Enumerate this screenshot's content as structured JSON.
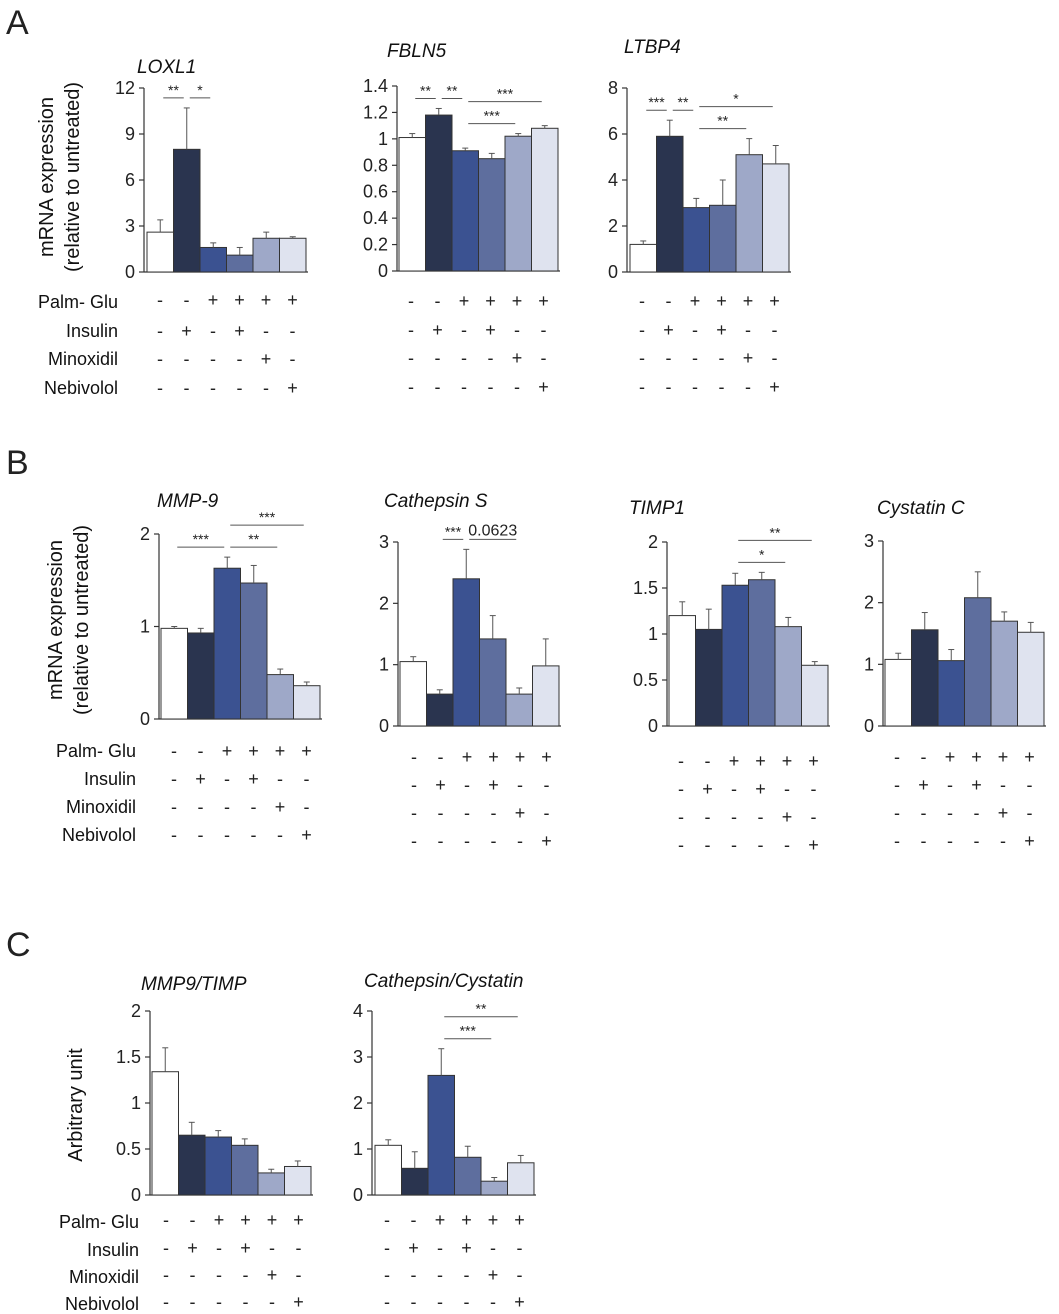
{
  "panel_labels": [
    "A",
    "B",
    "C"
  ],
  "bar_colors": [
    "#ffffff",
    "#2a344f",
    "#3b5291",
    "#5e6e9e",
    "#9ea8c8",
    "#dfe3ef"
  ],
  "conditions": {
    "labels": [
      "Palm- Glu",
      "Insulin",
      "Minoxidil",
      "Nebivolol"
    ],
    "rows": [
      [
        "-",
        "-",
        "+",
        "+",
        "+",
        "+"
      ],
      [
        "-",
        "+",
        "-",
        "+",
        "-",
        "-"
      ],
      [
        "-",
        "-",
        "-",
        "-",
        "+",
        "-"
      ],
      [
        "-",
        "-",
        "-",
        "-",
        "-",
        "+"
      ]
    ]
  },
  "y_labels": {
    "A": [
      "mRNA expression",
      "(relative to untreated)"
    ],
    "B": [
      "mRNA expression",
      "(relative  to untreated)"
    ],
    "C": [
      "Arbitrary unit"
    ]
  },
  "chart_data": [
    {
      "panel": "A",
      "type": "bar",
      "title": "LOXL1",
      "ylim": [
        0,
        12
      ],
      "yticks": [
        "0",
        "3",
        "6",
        "9",
        "12"
      ],
      "tick_values": [
        0,
        3,
        6,
        9,
        12
      ],
      "values": [
        2.6,
        8.0,
        1.6,
        1.1,
        2.2,
        2.2
      ],
      "errors": [
        0.8,
        2.7,
        0.3,
        0.5,
        0.4,
        0.1
      ],
      "significance": [
        {
          "from": 0,
          "to": 1,
          "label": "**"
        },
        {
          "from": 1,
          "to": 2,
          "label": "*"
        }
      ]
    },
    {
      "panel": "A",
      "type": "bar",
      "title": "FBLN5",
      "ylim": [
        0,
        1.4
      ],
      "yticks": [
        "0",
        "0.2",
        "0.4",
        "0.6",
        "0.8",
        "1",
        "1.2",
        "1.4"
      ],
      "tick_values": [
        0,
        0.2,
        0.4,
        0.6,
        0.8,
        1,
        1.2,
        1.4
      ],
      "values": [
        1.01,
        1.18,
        0.91,
        0.85,
        1.02,
        1.08
      ],
      "errors": [
        0.03,
        0.05,
        0.02,
        0.04,
        0.02,
        0.02
      ],
      "significance": [
        {
          "from": 0,
          "to": 1,
          "label": "**"
        },
        {
          "from": 1,
          "to": 2,
          "label": "**"
        },
        {
          "from": 2,
          "to": 5,
          "label": "***"
        },
        {
          "from": 2,
          "to": 4,
          "label": "***"
        }
      ]
    },
    {
      "panel": "A",
      "type": "bar",
      "title": "LTBP4",
      "ylim": [
        0,
        8
      ],
      "yticks": [
        "0",
        "2",
        "4",
        "6",
        "8"
      ],
      "tick_values": [
        0,
        2,
        4,
        6,
        8
      ],
      "values": [
        1.2,
        5.9,
        2.8,
        2.9,
        5.1,
        4.7
      ],
      "errors": [
        0.15,
        0.7,
        0.4,
        1.1,
        0.7,
        0.8
      ],
      "significance": [
        {
          "from": 0,
          "to": 1,
          "label": "***"
        },
        {
          "from": 1,
          "to": 2,
          "label": "**"
        },
        {
          "from": 2,
          "to": 5,
          "label": "*"
        },
        {
          "from": 2,
          "to": 4,
          "label": "**"
        }
      ]
    },
    {
      "panel": "B",
      "type": "bar",
      "title": "MMP-9",
      "ylim": [
        0,
        2
      ],
      "yticks": [
        "0",
        "1",
        "2"
      ],
      "tick_values": [
        0,
        1,
        2
      ],
      "values": [
        0.98,
        0.93,
        1.63,
        1.47,
        0.48,
        0.36
      ],
      "errors": [
        0.02,
        0.05,
        0.12,
        0.19,
        0.06,
        0.04
      ],
      "significance": [
        {
          "from": 0,
          "to": 2,
          "label": "***"
        },
        {
          "from": 2,
          "to": 5,
          "label": "***"
        },
        {
          "from": 2,
          "to": 4,
          "label": "**"
        }
      ]
    },
    {
      "panel": "B",
      "type": "bar",
      "title": "Cathepsin S",
      "ylim": [
        0,
        3
      ],
      "yticks": [
        "0",
        "1",
        "2",
        "3"
      ],
      "tick_values": [
        0,
        1,
        2,
        3
      ],
      "values": [
        1.05,
        0.52,
        2.4,
        1.42,
        0.52,
        0.98
      ],
      "errors": [
        0.08,
        0.07,
        0.48,
        0.38,
        0.1,
        0.44
      ],
      "significance": [
        {
          "from": 1,
          "to": 2,
          "label": "***"
        },
        {
          "from": 2,
          "to": 4,
          "label": "0.0623",
          "underlined": true
        }
      ]
    },
    {
      "panel": "B",
      "type": "bar",
      "title": "TIMP1",
      "ylim": [
        0,
        2
      ],
      "yticks": [
        "0",
        "0.5",
        "1",
        "1.5",
        "2"
      ],
      "tick_values": [
        0,
        0.5,
        1,
        1.5,
        2
      ],
      "values": [
        1.2,
        1.05,
        1.53,
        1.59,
        1.08,
        0.66
      ],
      "errors": [
        0.15,
        0.22,
        0.13,
        0.08,
        0.1,
        0.04
      ],
      "significance": [
        {
          "from": 2,
          "to": 5,
          "label": "**"
        },
        {
          "from": 2,
          "to": 4,
          "label": "*"
        }
      ]
    },
    {
      "panel": "B",
      "type": "bar",
      "title": "Cystatin C",
      "ylim": [
        0,
        3
      ],
      "yticks": [
        "0",
        "1",
        "2",
        "3"
      ],
      "tick_values": [
        0,
        1,
        2,
        3
      ],
      "values": [
        1.08,
        1.56,
        1.06,
        2.08,
        1.7,
        1.52
      ],
      "errors": [
        0.1,
        0.28,
        0.18,
        0.42,
        0.15,
        0.16
      ],
      "significance": []
    },
    {
      "panel": "C",
      "type": "bar",
      "title": "MMP9/TIMP",
      "ylim": [
        0,
        2
      ],
      "yticks": [
        "0",
        "0.5",
        "1",
        "1.5",
        "2"
      ],
      "tick_values": [
        0,
        0.5,
        1,
        1.5,
        2
      ],
      "values": [
        1.34,
        0.65,
        0.63,
        0.54,
        0.24,
        0.31
      ],
      "errors": [
        0.26,
        0.14,
        0.07,
        0.07,
        0.04,
        0.06
      ],
      "significance": []
    },
    {
      "panel": "C",
      "type": "bar",
      "title": "Cathepsin/Cystatin",
      "ylim": [
        0,
        4
      ],
      "yticks": [
        "0",
        "1",
        "2",
        "3",
        "4"
      ],
      "tick_values": [
        0,
        1,
        2,
        3,
        4
      ],
      "values": [
        1.08,
        0.58,
        2.6,
        0.82,
        0.3,
        0.7
      ],
      "errors": [
        0.12,
        0.36,
        0.58,
        0.24,
        0.08,
        0.16
      ],
      "significance": [
        {
          "from": 2,
          "to": 5,
          "label": "**"
        },
        {
          "from": 2,
          "to": 4,
          "label": "***"
        }
      ]
    }
  ]
}
